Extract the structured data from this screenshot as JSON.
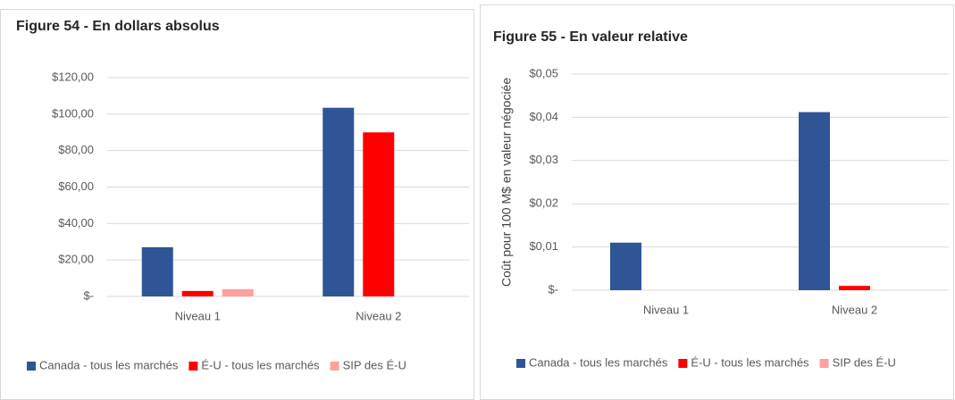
{
  "chart_data": [
    {
      "type": "bar",
      "title": "Figure 54 - En dollars absolus",
      "categories": [
        "Niveau 1",
        "Niveau 2"
      ],
      "series": [
        {
          "name": "Canada - tous les marchés",
          "color": "#2f5597",
          "values": [
            27,
            103.5
          ]
        },
        {
          "name": "É-U - tous les marchés",
          "color": "#ff0000",
          "values": [
            3,
            90
          ]
        },
        {
          "name": "SIP des É-U",
          "color": "#ff9f9f",
          "values": [
            4,
            null
          ]
        }
      ],
      "ylim": [
        0,
        120
      ],
      "yticks": [
        {
          "value": 0,
          "label": "$-"
        },
        {
          "value": 20,
          "label": "$20,00"
        },
        {
          "value": 40,
          "label": "$40,00"
        },
        {
          "value": 60,
          "label": "$60,00"
        },
        {
          "value": 80,
          "label": "$80,00"
        },
        {
          "value": 100,
          "label": "$100,00"
        },
        {
          "value": 120,
          "label": "$120,00"
        }
      ],
      "grid": true,
      "legend": "bottom"
    },
    {
      "type": "bar",
      "title": "Figure 55 - En valeur relative",
      "y_label": "Coût pour 100 M$  en valeur négociée",
      "categories": [
        "Niveau 1",
        "Niveau 2"
      ],
      "series": [
        {
          "name": "Canada - tous les marchés",
          "color": "#2f5597",
          "values": [
            0.011,
            0.0412
          ]
        },
        {
          "name": "É-U - tous les marchés",
          "color": "#ff0000",
          "values": [
            null,
            0.001
          ]
        },
        {
          "name": "SIP des É-U",
          "color": "#ff9f9f",
          "values": [
            null,
            null
          ]
        }
      ],
      "ylim": [
        0,
        0.05
      ],
      "yticks": [
        {
          "value": 0,
          "label": "$-"
        },
        {
          "value": 0.01,
          "label": "$0,01"
        },
        {
          "value": 0.02,
          "label": "$0,02"
        },
        {
          "value": 0.03,
          "label": "$0,03"
        },
        {
          "value": 0.04,
          "label": "$0,04"
        },
        {
          "value": 0.05,
          "label": "$0,05"
        }
      ],
      "grid": true,
      "legend": "bottom"
    }
  ]
}
